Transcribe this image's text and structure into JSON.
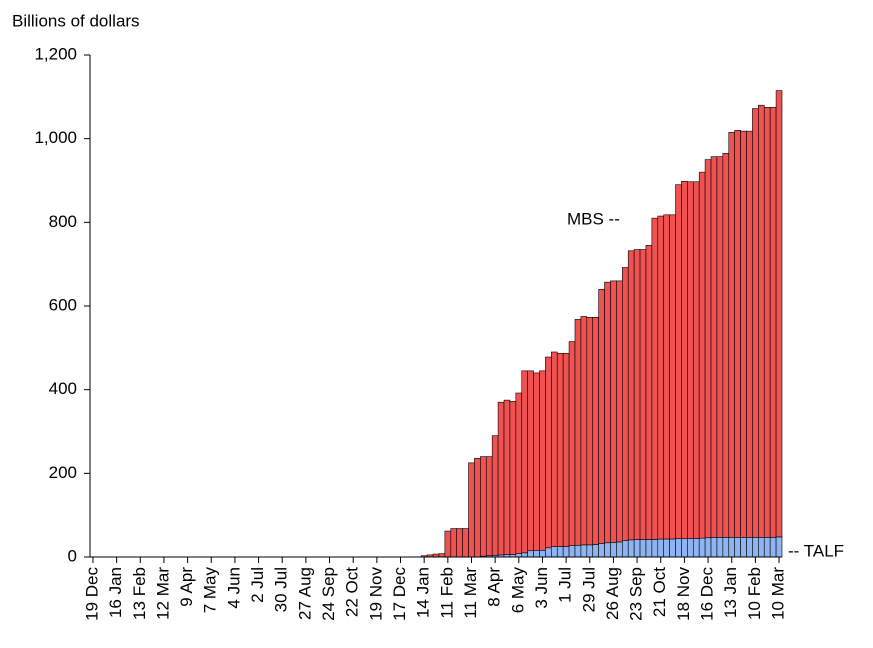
{
  "chart_data": {
    "type": "stacked-bar",
    "y_axis_label": "Billions of dollars",
    "categories": [
      "19 Dec",
      null,
      null,
      null,
      "16 Jan",
      null,
      null,
      null,
      "13 Feb",
      null,
      null,
      null,
      "12 Mar",
      null,
      null,
      null,
      "9 Apr",
      null,
      null,
      null,
      "7 May",
      null,
      null,
      null,
      "4 Jun",
      null,
      null,
      null,
      "2 Jul",
      null,
      null,
      null,
      "30 Jul",
      null,
      null,
      null,
      "27 Aug",
      null,
      null,
      null,
      "24 Sep",
      null,
      null,
      null,
      "22 Oct",
      null,
      null,
      null,
      "19 Nov",
      null,
      null,
      null,
      "17 Dec",
      null,
      null,
      null,
      "14 Jan",
      null,
      null,
      null,
      "11 Feb",
      null,
      null,
      null,
      "11 Mar",
      null,
      null,
      null,
      "8 Apr",
      null,
      null,
      null,
      "6 May",
      null,
      null,
      null,
      "3 Jun",
      null,
      null,
      null,
      "1 Jul",
      null,
      null,
      null,
      "29 Jul",
      null,
      null,
      null,
      "26 Aug",
      null,
      null,
      null,
      "23 Sep",
      null,
      null,
      null,
      "21 Oct",
      null,
      null,
      null,
      "18 Nov",
      null,
      null,
      null,
      "16 Dec",
      null,
      null,
      null,
      "13 Jan",
      null,
      null,
      null,
      "10 Feb",
      null,
      null,
      null,
      "10 Mar"
    ],
    "series": [
      {
        "name": "TALF",
        "color": "#8fb4f2",
        "values": [
          0,
          0,
          0,
          0,
          0,
          0,
          0,
          0,
          0,
          0,
          0,
          0,
          0,
          0,
          0,
          0,
          0,
          0,
          0,
          0,
          0,
          0,
          0,
          0,
          0,
          0,
          0,
          0,
          0,
          0,
          0,
          0,
          0,
          0,
          0,
          0,
          0,
          0,
          0,
          0,
          0,
          0,
          0,
          0,
          0,
          0,
          0,
          0,
          0,
          0,
          0,
          0,
          0,
          0,
          0,
          0,
          0,
          0,
          0,
          0,
          0,
          0,
          0,
          0,
          0,
          0,
          2,
          3,
          4,
          5,
          6,
          6,
          8,
          10,
          15,
          16,
          16,
          22,
          25,
          25,
          25,
          27,
          28,
          29,
          29,
          30,
          32,
          34,
          35,
          36,
          39,
          41,
          42,
          42,
          42,
          42,
          43,
          43,
          43,
          44,
          44,
          44,
          44,
          45,
          46,
          47,
          47,
          47,
          47,
          47,
          47,
          47,
          47,
          47,
          47,
          47,
          48
        ]
      },
      {
        "name": "MBS",
        "color": "#f05252",
        "values": [
          0,
          0,
          0,
          0,
          0,
          0,
          0,
          0,
          0,
          0,
          0,
          0,
          0,
          0,
          0,
          0,
          0,
          0,
          0,
          0,
          0,
          0,
          0,
          0,
          0,
          0,
          0,
          0,
          0,
          0,
          0,
          0,
          0,
          0,
          0,
          0,
          0,
          0,
          0,
          0,
          0,
          0,
          0,
          0,
          0,
          0,
          0,
          0,
          0,
          0,
          0,
          0,
          0,
          0,
          0,
          0,
          3,
          5,
          7,
          8,
          62,
          68,
          68,
          68,
          225,
          236,
          238,
          237,
          286,
          365,
          369,
          366,
          384,
          435,
          430,
          424,
          429,
          456,
          465,
          462,
          462,
          488,
          540,
          546,
          544,
          543,
          608,
          623,
          625,
          624,
          653,
          691,
          693,
          693,
          703,
          768,
          772,
          775,
          775,
          846,
          854,
          853,
          853,
          875,
          904,
          910,
          910,
          918,
          968,
          973,
          971,
          971,
          1025,
          1033,
          1028,
          1028,
          1067
        ]
      }
    ],
    "annotations": [
      "MBS --",
      "-- TALF"
    ],
    "ylim": [
      0,
      1200
    ],
    "yticks": [
      0,
      200,
      400,
      600,
      800,
      {
        "value": 1000,
        "label": "1,000"
      },
      {
        "value": 1200,
        "label": "1,200"
      }
    ]
  }
}
